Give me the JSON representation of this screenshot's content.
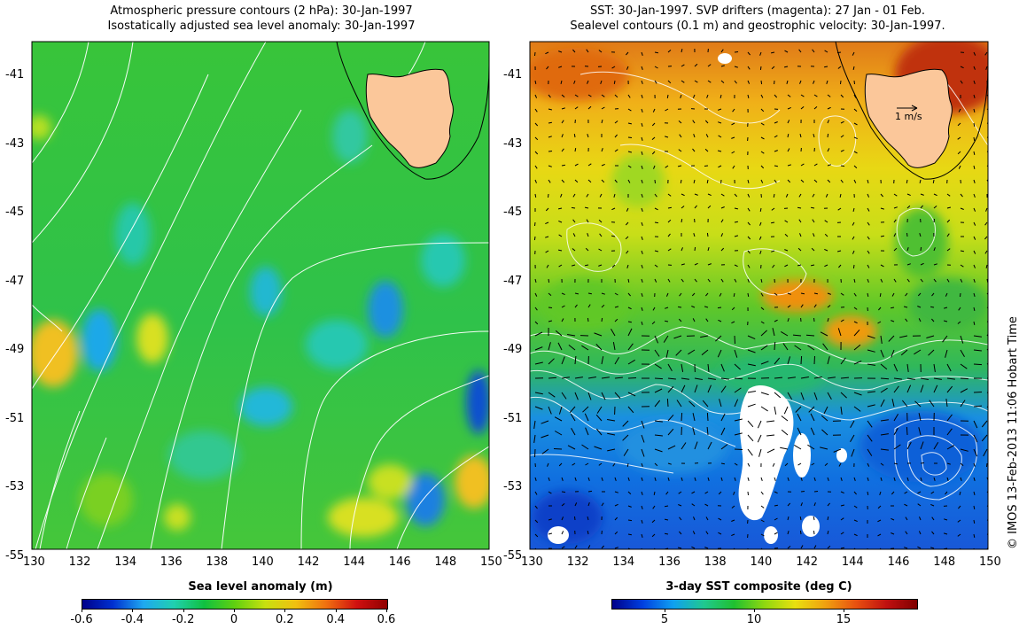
{
  "left_panel": {
    "title_line1": "Atmospheric pressure contours (2 hPa): 30-Jan-1997",
    "title_line2": "Isostatically adjusted sea level anomaly: 30-Jan-1997",
    "colorbar_title": "Sea level anomaly (m)",
    "colorbar_ticks": [
      "-0.6",
      "-0.4",
      "-0.2",
      "0",
      "0.2",
      "0.4",
      "0.6"
    ]
  },
  "right_panel": {
    "title_line1": "SST: 30-Jan-1997. SVP drifters (magenta): 27 Jan - 01 Feb.",
    "title_line2": "Sealevel contours (0.1 m) and geostrophic velocity: 30-Jan-1997.",
    "colorbar_title": "3-day SST composite (deg C)",
    "colorbar_ticks": [
      "5",
      "10",
      "15"
    ],
    "velocity_scale_label": "1 m/s"
  },
  "axes": {
    "lon_ticks": [
      "130",
      "132",
      "134",
      "136",
      "138",
      "140",
      "142",
      "144",
      "146",
      "148",
      "150"
    ],
    "lat_ticks": [
      "-41",
      "-43",
      "-45",
      "-47",
      "-49",
      "-51",
      "-53",
      "-55"
    ]
  },
  "credit": "© IMOS 13-Feb-2013 11:06 Hobart Time",
  "colors": {
    "land": "#fbc79a",
    "sla_gradient": [
      "#00008a",
      "#0030d0",
      "#1fa8f0",
      "#20d0b0",
      "#10c040",
      "#60d010",
      "#c8e010",
      "#f0c010",
      "#f07010",
      "#d01010",
      "#900000"
    ],
    "sst_gradient": [
      "#00008a",
      "#0040e0",
      "#10a0f0",
      "#20c890",
      "#20c030",
      "#90d810",
      "#e8e010",
      "#f0a010",
      "#e85010",
      "#c01010",
      "#800000"
    ]
  }
}
